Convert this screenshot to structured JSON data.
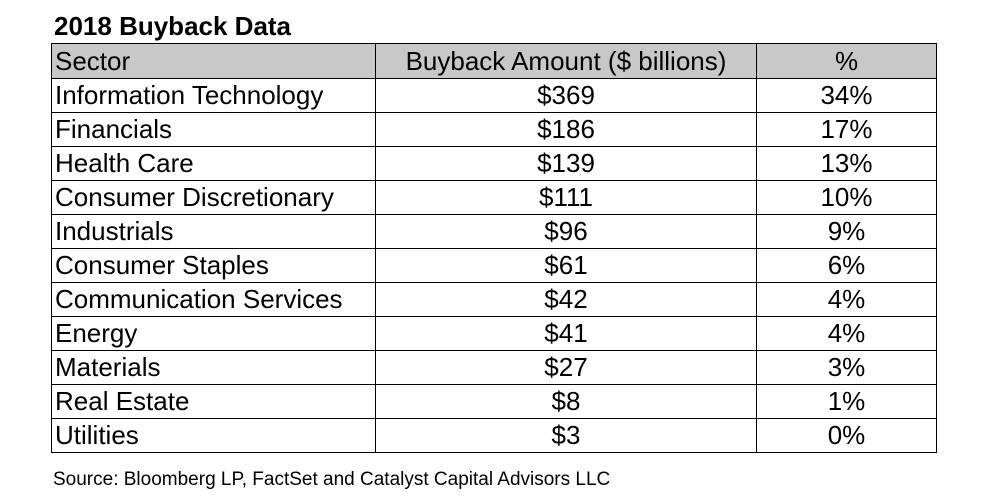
{
  "title": "2018 Buyback Data",
  "headers": {
    "sector": "Sector",
    "amount": "Buyback Amount ($ billions)",
    "pct": "%"
  },
  "rows": [
    {
      "sector": "Information Technology",
      "amount": "$369",
      "pct": "34%"
    },
    {
      "sector": "Financials",
      "amount": "$186",
      "pct": "17%"
    },
    {
      "sector": "Health Care",
      "amount": "$139",
      "pct": "13%"
    },
    {
      "sector": "Consumer Discretionary",
      "amount": "$111",
      "pct": "10%"
    },
    {
      "sector": "Industrials",
      "amount": "$96",
      "pct": "9%"
    },
    {
      "sector": "Consumer Staples",
      "amount": "$61",
      "pct": "6%"
    },
    {
      "sector": "Communication Services",
      "amount": "$42",
      "pct": "4%"
    },
    {
      "sector": "Energy",
      "amount": "$41",
      "pct": "4%"
    },
    {
      "sector": "Materials",
      "amount": "$27",
      "pct": "3%"
    },
    {
      "sector": "Real Estate",
      "amount": "$8",
      "pct": "1%"
    },
    {
      "sector": "Utilities",
      "amount": "$3",
      "pct": "0%"
    }
  ],
  "source": "Source: Bloomberg LP, FactSet and Catalyst Capital Advisors LLC",
  "colors": {
    "header_bg": "#c8c8c8",
    "border": "#000000"
  },
  "chart_data": {
    "type": "table",
    "title": "2018 Buyback Data",
    "columns": [
      "Sector",
      "Buyback Amount ($ billions)",
      "%"
    ],
    "categories": [
      "Information Technology",
      "Financials",
      "Health Care",
      "Consumer Discretionary",
      "Industrials",
      "Consumer Staples",
      "Communication Services",
      "Energy",
      "Materials",
      "Real Estate",
      "Utilities"
    ],
    "series": [
      {
        "name": "Buyback Amount ($ billions)",
        "values": [
          369,
          186,
          139,
          111,
          96,
          61,
          42,
          41,
          27,
          8,
          3
        ]
      },
      {
        "name": "%",
        "values": [
          34,
          17,
          13,
          10,
          9,
          6,
          4,
          4,
          3,
          1,
          0
        ]
      }
    ]
  }
}
